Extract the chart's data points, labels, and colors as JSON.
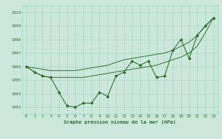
{
  "x": [
    0,
    1,
    2,
    3,
    4,
    5,
    6,
    7,
    8,
    9,
    10,
    11,
    12,
    13,
    14,
    15,
    16,
    17,
    18,
    19,
    20,
    21,
    22,
    23
  ],
  "line_main": [
    1006.0,
    1005.6,
    1005.3,
    1005.2,
    1004.1,
    1003.1,
    1003.0,
    1003.3,
    1003.3,
    1004.1,
    1003.8,
    1005.3,
    1005.6,
    1006.4,
    1006.1,
    1006.4,
    1005.2,
    1005.3,
    1007.2,
    1008.0,
    1006.6,
    1008.3,
    1009.0,
    1009.6
  ],
  "line_upper": [
    1006.0,
    1005.9,
    1005.8,
    1005.7,
    1005.7,
    1005.7,
    1005.7,
    1005.8,
    1005.9,
    1006.0,
    1006.1,
    1006.3,
    1006.5,
    1006.6,
    1006.7,
    1006.8,
    1006.9,
    1007.0,
    1007.2,
    1007.5,
    1007.8,
    1008.3,
    1009.0,
    1009.6
  ],
  "line_lower": [
    1006.0,
    1005.6,
    1005.3,
    1005.2,
    1005.2,
    1005.2,
    1005.2,
    1005.2,
    1005.3,
    1005.4,
    1005.5,
    1005.6,
    1005.7,
    1005.8,
    1005.9,
    1006.0,
    1006.1,
    1006.3,
    1006.5,
    1006.7,
    1007.0,
    1007.5,
    1008.5,
    1009.6
  ],
  "ylim": [
    1002.5,
    1010.5
  ],
  "yticks": [
    1003,
    1004,
    1005,
    1006,
    1007,
    1008,
    1009,
    1010
  ],
  "xticks": [
    0,
    1,
    2,
    3,
    4,
    5,
    6,
    7,
    8,
    9,
    10,
    11,
    12,
    13,
    14,
    15,
    16,
    17,
    18,
    19,
    20,
    21,
    22,
    23
  ],
  "xlabel": "Graphe pression niveau de la mer (hPa)",
  "line_color": "#2d6a2d",
  "bg_color": "#cce8dc",
  "grid_color": "#9ecfb8",
  "tick_color": "#2d6a2d",
  "label_color": "#2d6a2d",
  "fig_width": 3.2,
  "fig_height": 2.0,
  "dpi": 100
}
